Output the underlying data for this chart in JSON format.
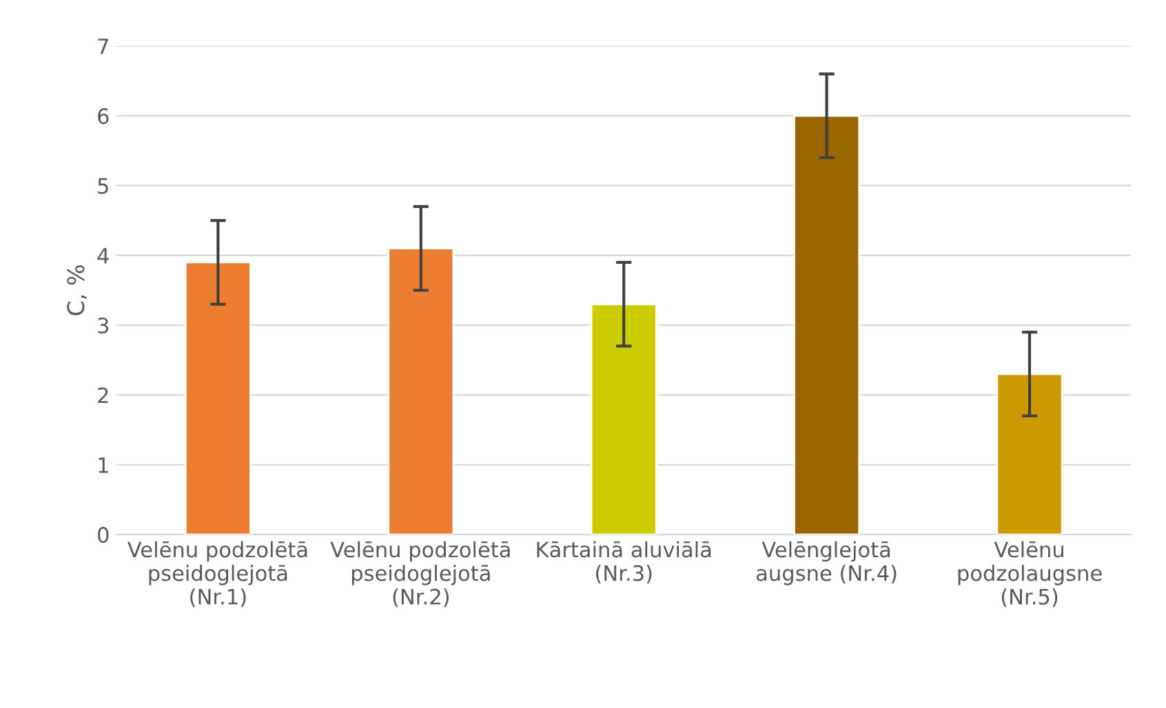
{
  "chart_data": {
    "type": "bar",
    "categories": [
      "Velēnu podzolētā pseidoglejotā (Nr.1)",
      "Velēnu podzolētā pseidoglejotā (Nr.2)",
      "Kārtainā aluviālā (Nr.3)",
      "Velēnglejotā augsne (Nr.4)",
      "Velēnu podzolaugsne (Nr.5)"
    ],
    "values": [
      3.9,
      4.1,
      3.3,
      6.0,
      2.3
    ],
    "errors": [
      0.6,
      0.6,
      0.6,
      0.6,
      0.6
    ],
    "colors": [
      "#ed7d31",
      "#ed7d31",
      "#cccc00",
      "#996600",
      "#cc9900"
    ],
    "ylabel": "C, %",
    "ylim": [
      0,
      7
    ],
    "yticks": [
      0,
      1,
      2,
      3,
      4,
      5,
      6,
      7
    ],
    "grid": "y",
    "legend": false
  }
}
